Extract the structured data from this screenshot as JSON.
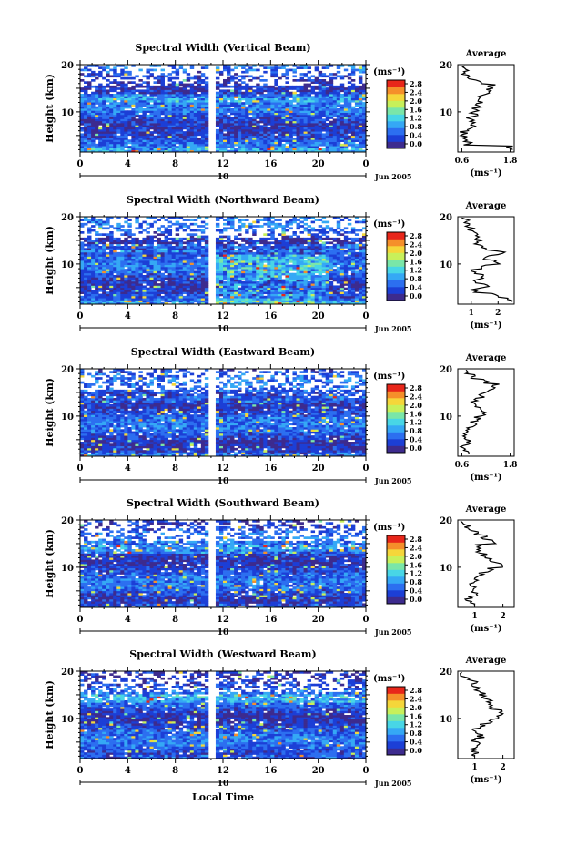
{
  "figure": {
    "xlabel": "Local Time",
    "date_label": "Jun 2005",
    "day_label": "10",
    "x_ticks": [
      "0",
      "4",
      "8",
      "12",
      "16",
      "20",
      "0"
    ],
    "ylabel": "Height (km)",
    "y_ticks": [
      "10",
      "20"
    ],
    "unit_label": "(ms⁻¹)",
    "avg_title": "Average",
    "avg_unit_label": "(ms⁻¹)",
    "colorbar_ticks": [
      "0.0",
      "0.4",
      "0.8",
      "1.2",
      "1.6",
      "2.0",
      "2.4",
      "2.8"
    ],
    "colors": [
      "#3d2b8e",
      "#1c3fd6",
      "#2c6ff0",
      "#35a8f5",
      "#48d6e6",
      "#7ae6a8",
      "#c8f05a",
      "#f5d63a",
      "#f58f2a",
      "#e8261a"
    ]
  },
  "chart_data": [
    {
      "type": "heatmap",
      "title": "Spectral Width (Vertical Beam)",
      "x_range_hours": [
        0,
        24
      ],
      "y_range_km": [
        1.5,
        20
      ],
      "color_range": [
        0,
        3
      ],
      "data_gap_hours": [
        10.8,
        11.4
      ],
      "average_profile": {
        "title": "Average",
        "x_ticks": [
          "0.6",
          "1.8"
        ],
        "x_range": [
          0.5,
          1.9
        ],
        "height_km": [
          2,
          3,
          4,
          5,
          6,
          7,
          8,
          9,
          10,
          11,
          12,
          13,
          14,
          15,
          16,
          17,
          18,
          19
        ],
        "width_ms": [
          1.8,
          0.75,
          0.7,
          0.65,
          0.8,
          0.85,
          0.8,
          0.9,
          0.95,
          1.0,
          1.05,
          1.1,
          1.25,
          1.35,
          1.05,
          0.8,
          0.7,
          0.65
        ]
      }
    },
    {
      "type": "heatmap",
      "title": "Spectral Width (Northward Beam)",
      "x_range_hours": [
        0,
        24
      ],
      "y_range_km": [
        1.5,
        20
      ],
      "color_range": [
        0,
        3
      ],
      "data_gap_hours": [
        10.8,
        11.4
      ],
      "average_profile": {
        "title": "Average",
        "x_ticks": [
          "1",
          "2"
        ],
        "x_range": [
          0.5,
          2.6
        ],
        "height_km": [
          2,
          3,
          4,
          5,
          6,
          7,
          8,
          9,
          10,
          11,
          12,
          13,
          14,
          15,
          16,
          17,
          18,
          19
        ],
        "width_ms": [
          2.4,
          1.9,
          1.1,
          1.5,
          1.2,
          1.3,
          1.1,
          1.4,
          1.9,
          1.6,
          2.1,
          1.4,
          1.2,
          1.3,
          1.1,
          1.0,
          0.9,
          0.8
        ]
      }
    },
    {
      "type": "heatmap",
      "title": "Spectral Width (Eastward Beam)",
      "x_range_hours": [
        0,
        24
      ],
      "y_range_km": [
        1.5,
        20
      ],
      "color_range": [
        0,
        3
      ],
      "data_gap_hours": [
        10.8,
        11.4
      ],
      "average_profile": {
        "title": "Average",
        "x_ticks": [
          "0.6",
          "1.8"
        ],
        "x_range": [
          0.5,
          1.9
        ],
        "height_km": [
          2,
          3,
          4,
          5,
          6,
          7,
          8,
          9,
          10,
          11,
          12,
          13,
          14,
          15,
          16,
          17,
          18,
          19
        ],
        "width_ms": [
          0.7,
          0.65,
          0.8,
          0.7,
          0.75,
          0.8,
          0.9,
          1.0,
          1.1,
          1.05,
          1.0,
          0.9,
          1.1,
          1.3,
          1.45,
          1.2,
          0.85,
          0.7
        ]
      }
    },
    {
      "type": "heatmap",
      "title": "Spectral Width (Southward Beam)",
      "x_range_hours": [
        0,
        24
      ],
      "y_range_km": [
        1.5,
        20
      ],
      "color_range": [
        0,
        3
      ],
      "data_gap_hours": [
        10.8,
        11.4
      ],
      "average_profile": {
        "title": "Average",
        "x_ticks": [
          "1",
          "2"
        ],
        "x_range": [
          0.4,
          2.4
        ],
        "height_km": [
          2,
          3,
          4,
          5,
          6,
          7,
          8,
          9,
          10,
          11,
          12,
          13,
          14,
          15,
          16,
          17,
          18,
          19
        ],
        "width_ms": [
          0.9,
          0.8,
          1.0,
          0.9,
          0.95,
          1.1,
          1.2,
          1.5,
          1.9,
          1.6,
          1.3,
          1.2,
          1.1,
          1.6,
          1.3,
          1.0,
          0.7,
          0.55
        ]
      }
    },
    {
      "type": "heatmap",
      "title": "Spectral Width (Westward Beam)",
      "x_range_hours": [
        0,
        24
      ],
      "y_range_km": [
        1.5,
        20
      ],
      "color_range": [
        0,
        3
      ],
      "data_gap_hours": [
        10.8,
        11.4
      ],
      "average_profile": {
        "title": "Average",
        "x_ticks": [
          "1",
          "2"
        ],
        "x_range": [
          0.4,
          2.4
        ],
        "height_km": [
          2,
          3,
          4,
          5,
          6,
          7,
          8,
          9,
          10,
          11,
          12,
          13,
          14,
          15,
          16,
          17,
          18,
          19
        ],
        "width_ms": [
          1.0,
          0.95,
          1.1,
          1.0,
          1.2,
          1.0,
          1.3,
          1.5,
          1.9,
          2.0,
          1.6,
          1.5,
          1.4,
          1.3,
          1.1,
          1.0,
          0.8,
          0.6
        ]
      }
    }
  ]
}
